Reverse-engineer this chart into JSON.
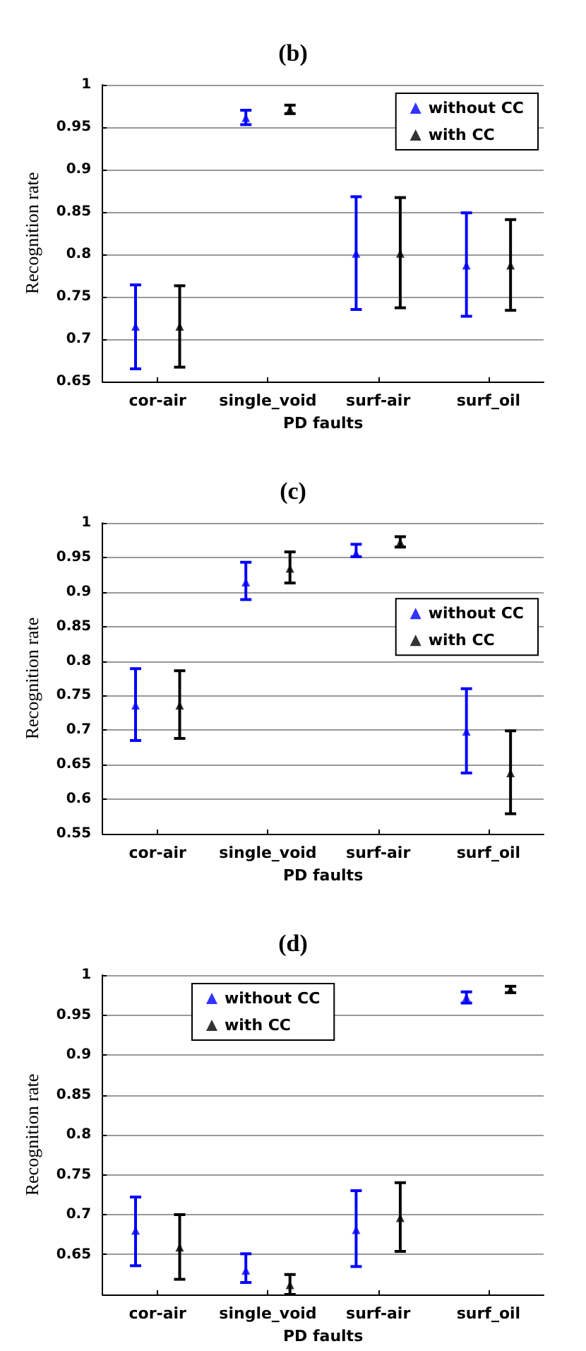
{
  "chart_data": [
    {
      "type": "scatter",
      "title": "(b)",
      "xlabel": "PD faults",
      "ylabel": "Recognition rate",
      "categories": [
        "cor-air",
        "single_void",
        "surf-air",
        "surf_oil"
      ],
      "ylim": [
        0.65,
        1
      ],
      "yticks": [
        0.65,
        0.7,
        0.75,
        0.8,
        0.85,
        0.9,
        0.95,
        1
      ],
      "grid": "y",
      "legend": "top right",
      "marker": "triangle",
      "series": [
        {
          "name": "without CC",
          "color": "#0000ff",
          "values": [
            0.715,
            0.961,
            0.801,
            0.787
          ],
          "errors": [
            [
              0.665,
              0.764
            ],
            [
              0.953,
              0.97
            ],
            [
              0.735,
              0.868
            ],
            [
              0.727,
              0.849
            ]
          ]
        },
        {
          "name": "with CC",
          "color": "#000000",
          "values": [
            0.715,
            0.971,
            0.801,
            0.787
          ],
          "errors": [
            [
              0.667,
              0.763
            ],
            [
              0.966,
              0.976
            ],
            [
              0.737,
              0.867
            ],
            [
              0.734,
              0.841
            ]
          ]
        }
      ]
    },
    {
      "type": "scatter",
      "title": "(c)",
      "xlabel": "PD faults",
      "ylabel": "Recognition rate",
      "categories": [
        "cor-air",
        "single_void",
        "surf-air",
        "surf_oil"
      ],
      "ylim": [
        0.55,
        1
      ],
      "yticks": [
        0.55,
        0.6,
        0.65,
        0.7,
        0.75,
        0.8,
        0.85,
        0.9,
        0.95,
        1
      ],
      "grid": "y",
      "legend": "right",
      "marker": "triangle",
      "series": [
        {
          "name": "without CC",
          "color": "#0000ff",
          "values": [
            0.736,
            0.914,
            0.956,
            0.698
          ],
          "errors": [
            [
              0.685,
              0.789
            ],
            [
              0.889,
              0.943
            ],
            [
              0.951,
              0.969
            ],
            [
              0.638,
              0.76
            ]
          ]
        },
        {
          "name": "with CC",
          "color": "#000000",
          "values": [
            0.736,
            0.934,
            0.972,
            0.638
          ],
          "errors": [
            [
              0.688,
              0.786
            ],
            [
              0.913,
              0.958
            ],
            [
              0.965,
              0.98
            ],
            [
              0.579,
              0.699
            ]
          ]
        }
      ]
    },
    {
      "type": "scatter",
      "title": "(d)",
      "xlabel": "PD faults",
      "ylabel": "Recognition rate",
      "categories": [
        "cor-air",
        "single_void",
        "surf-air",
        "surf_oil"
      ],
      "ylim": [
        0.6,
        1
      ],
      "yticks": [
        0.65,
        0.7,
        0.75,
        0.8,
        0.85,
        0.9,
        0.95,
        1
      ],
      "grid": "y",
      "legend": "top left",
      "marker": "triangle",
      "series": [
        {
          "name": "without CC",
          "color": "#0000ff",
          "values": [
            0.68,
            0.63,
            0.681,
            0.972
          ],
          "errors": [
            [
              0.636,
              0.722
            ],
            [
              0.615,
              0.651
            ],
            [
              0.635,
              0.73
            ],
            [
              0.965,
              0.979
            ]
          ]
        },
        {
          "name": "with CC",
          "color": "#000000",
          "values": [
            0.659,
            0.612,
            0.696,
            0.982
          ],
          "errors": [
            [
              0.619,
              0.7
            ],
            [
              0.6,
              0.625
            ],
            [
              0.654,
              0.74
            ],
            [
              0.978,
              0.986
            ]
          ]
        }
      ]
    }
  ]
}
